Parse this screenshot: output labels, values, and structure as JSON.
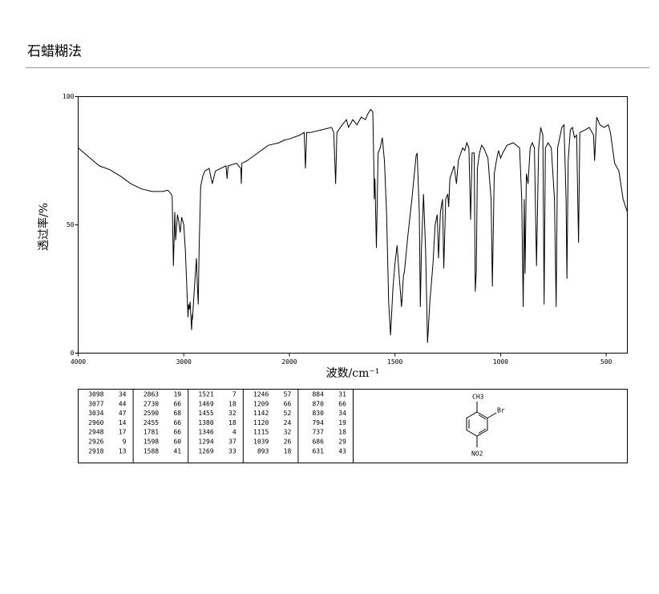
{
  "chart_data": {
    "type": "line",
    "title": "石蜡糊法",
    "xlabel": "波数/cm⁻¹",
    "ylabel": "透过率/%",
    "xlim": [
      4000,
      400
    ],
    "xticks": [
      4000,
      3000,
      2000,
      1500,
      1000,
      500
    ],
    "x_scale_break": 2000,
    "ylim": [
      0,
      100
    ],
    "yticks": [
      0,
      50,
      100
    ],
    "color": "#000000",
    "x": [
      4000,
      3900,
      3800,
      3700,
      3600,
      3500,
      3400,
      3300,
      3200,
      3150,
      3120,
      3110,
      3098,
      3085,
      3077,
      3060,
      3050,
      3034,
      3020,
      3000,
      2985,
      2960,
      2955,
      2948,
      2940,
      2926,
      2920,
      2918,
      2900,
      2880,
      2875,
      2863,
      2855,
      2840,
      2820,
      2800,
      2760,
      2730,
      2700,
      2650,
      2600,
      2590,
      2580,
      2500,
      2460,
      2455,
      2450,
      2400,
      2300,
      2200,
      2100,
      2050,
      2000,
      1950,
      1930,
      1924,
      1918,
      1900,
      1850,
      1800,
      1790,
      1781,
      1775,
      1750,
      1730,
      1720,
      1700,
      1680,
      1660,
      1640,
      1630,
      1615,
      1605,
      1600,
      1598,
      1595,
      1588,
      1580,
      1570,
      1560,
      1550,
      1540,
      1530,
      1521,
      1510,
      1500,
      1490,
      1480,
      1469,
      1460,
      1455,
      1440,
      1420,
      1400,
      1395,
      1385,
      1380,
      1375,
      1365,
      1355,
      1346,
      1335,
      1320,
      1310,
      1300,
      1294,
      1285,
      1275,
      1269,
      1260,
      1250,
      1246,
      1240,
      1220,
      1209,
      1200,
      1180,
      1170,
      1160,
      1150,
      1142,
      1135,
      1125,
      1120,
      1115,
      1110,
      1100,
      1090,
      1080,
      1060,
      1045,
      1039,
      1030,
      1020,
      1010,
      1000,
      990,
      970,
      940,
      910,
      900,
      893,
      888,
      884,
      878,
      870,
      860,
      850,
      840,
      830,
      820,
      810,
      800,
      794,
      788,
      775,
      760,
      745,
      737,
      730,
      710,
      700,
      690,
      686,
      680,
      670,
      660,
      650,
      640,
      631,
      625,
      600,
      580,
      560,
      555,
      545,
      530,
      510,
      490,
      480,
      460,
      440,
      420,
      400
    ],
    "values": [
      80,
      76.5,
      73,
      71.5,
      69,
      66,
      64,
      63,
      63,
      63.5,
      62,
      61,
      34,
      55,
      44,
      54,
      52,
      47,
      53,
      50,
      40,
      14,
      19,
      17,
      20,
      9,
      15,
      13,
      25,
      37,
      30,
      19,
      40,
      65,
      69,
      71,
      72,
      66,
      71,
      72,
      73,
      68,
      73,
      74,
      72,
      66,
      74,
      75,
      78,
      81,
      82,
      83,
      83.5,
      85,
      86,
      72,
      86,
      86,
      87,
      88,
      86,
      66,
      86,
      89,
      91,
      88,
      91,
      89,
      92,
      91,
      93,
      95,
      94,
      72,
      60,
      68,
      41,
      78,
      80,
      84,
      75,
      55,
      20,
      7,
      25,
      35,
      42,
      30,
      18,
      30,
      32,
      45,
      60,
      77,
      78,
      55,
      18,
      40,
      62,
      40,
      4,
      20,
      35,
      50,
      54,
      37,
      55,
      60,
      33,
      60,
      62,
      57,
      68,
      73,
      66,
      75,
      80,
      79,
      82,
      80,
      52,
      78,
      78,
      24,
      32,
      72,
      78,
      81,
      80,
      76,
      60,
      26,
      70,
      75,
      79,
      76,
      78,
      81,
      82,
      80,
      60,
      18,
      60,
      31,
      70,
      66,
      80,
      82,
      80,
      34,
      80,
      88,
      85,
      19,
      80,
      82,
      80,
      60,
      18,
      80,
      88,
      89,
      60,
      29,
      75,
      87,
      88,
      84,
      85,
      43,
      86,
      87,
      88,
      85,
      75,
      92,
      89,
      88,
      89,
      86,
      74,
      71,
      60,
      55
    ],
    "peak_table": [
      [
        [
          3098,
          34
        ],
        [
          3077,
          44
        ],
        [
          3034,
          47
        ],
        [
          2960,
          14
        ],
        [
          2948,
          17
        ],
        [
          2926,
          9
        ],
        [
          2918,
          13
        ]
      ],
      [
        [
          2863,
          19
        ],
        [
          2730,
          66
        ],
        [
          2590,
          68
        ],
        [
          2455,
          66
        ],
        [
          1781,
          66
        ],
        [
          1598,
          60
        ],
        [
          1588,
          41
        ]
      ],
      [
        [
          1521,
          7
        ],
        [
          1469,
          18
        ],
        [
          1455,
          32
        ],
        [
          1380,
          18
        ],
        [
          1346,
          4
        ],
        [
          1294,
          37
        ],
        [
          1269,
          33
        ]
      ],
      [
        [
          1246,
          57
        ],
        [
          1209,
          66
        ],
        [
          1142,
          52
        ],
        [
          1120,
          24
        ],
        [
          1115,
          32
        ],
        [
          1039,
          26
        ],
        [
          893,
          18
        ]
      ],
      [
        [
          884,
          31
        ],
        [
          870,
          66
        ],
        [
          830,
          34
        ],
        [
          794,
          19
        ],
        [
          737,
          18
        ],
        [
          686,
          29
        ],
        [
          631,
          43
        ]
      ]
    ],
    "structure_labels": [
      "CH3",
      "Br",
      "NO2"
    ]
  }
}
